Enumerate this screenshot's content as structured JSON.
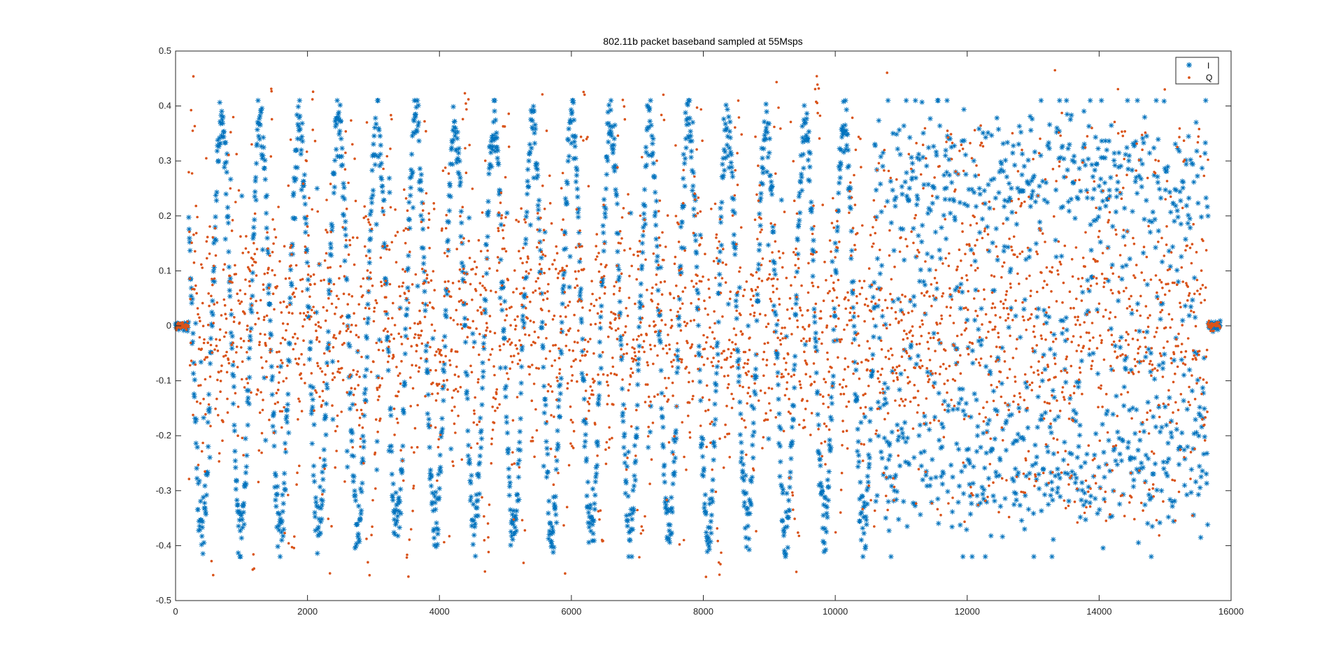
{
  "chart_data": {
    "type": "scatter",
    "title": "802.11b packet baseband sampled at 55Msps",
    "xlabel": "",
    "ylabel": "",
    "xlim": [
      0,
      16000
    ],
    "ylim": [
      -0.5,
      0.5
    ],
    "xticks": [
      0,
      2000,
      4000,
      6000,
      8000,
      10000,
      12000,
      14000,
      16000
    ],
    "yticks": [
      -0.5,
      -0.4,
      -0.3,
      -0.2,
      -0.1,
      0,
      0.1,
      0.2,
      0.3,
      0.4,
      0.5
    ],
    "grid": false,
    "legend_position": "top-right",
    "signal": {
      "samples": 15840,
      "packet_start": 200,
      "packet_end": 15650,
      "preamble_end": 10600,
      "preamble_cycle": 590,
      "preamble_amplitude": 0.37,
      "payload_amplitude": 0.33,
      "q_peak": 0.46
    },
    "series": [
      {
        "name": "I",
        "marker": "*",
        "color": "#0072BD"
      },
      {
        "name": "Q",
        "marker": ".",
        "color": "#D95319"
      }
    ]
  }
}
